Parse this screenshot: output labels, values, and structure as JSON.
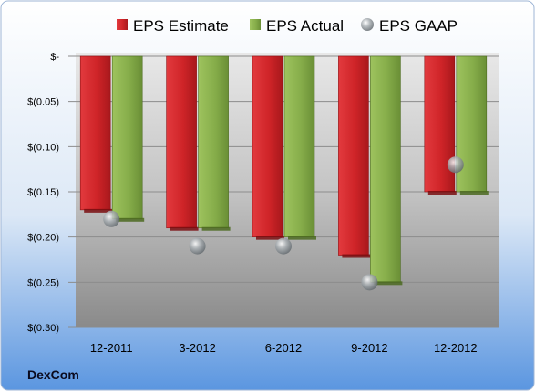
{
  "brand": "DexCom",
  "colors": {
    "estimate_front": "#d42a2e",
    "estimate_dark": "#9c1518",
    "actual_front": "#8fb552",
    "actual_dark": "#5f7f2e",
    "gaap": "#9aa0a4",
    "plot_top": "#e6e6e6",
    "plot_bottom": "#8a8a8a",
    "frame_top": "#ffffff",
    "frame_bottom": "#5b96e0"
  },
  "chart_data": {
    "type": "bar",
    "categories": [
      "12-2011",
      "3-2012",
      "6-2012",
      "9-2012",
      "12-2012"
    ],
    "series": [
      {
        "name": "EPS Estimate",
        "values": [
          -0.17,
          -0.19,
          -0.2,
          -0.22,
          -0.15
        ]
      },
      {
        "name": "EPS Actual",
        "values": [
          -0.18,
          -0.19,
          -0.2,
          -0.25,
          -0.15
        ]
      },
      {
        "name": "EPS GAAP",
        "values": [
          -0.18,
          -0.21,
          -0.21,
          -0.25,
          -0.12
        ]
      }
    ],
    "ylim": [
      -0.3,
      0
    ],
    "yticks": [
      0,
      -0.05,
      -0.1,
      -0.15,
      -0.2,
      -0.25,
      -0.3
    ],
    "ytick_labels": [
      "$-",
      "$(0.05)",
      "$(0.10)",
      "$(0.15)",
      "$(0.20)",
      "$(0.25)",
      "$(0.30)"
    ],
    "legend_position": "top",
    "grid": true
  }
}
